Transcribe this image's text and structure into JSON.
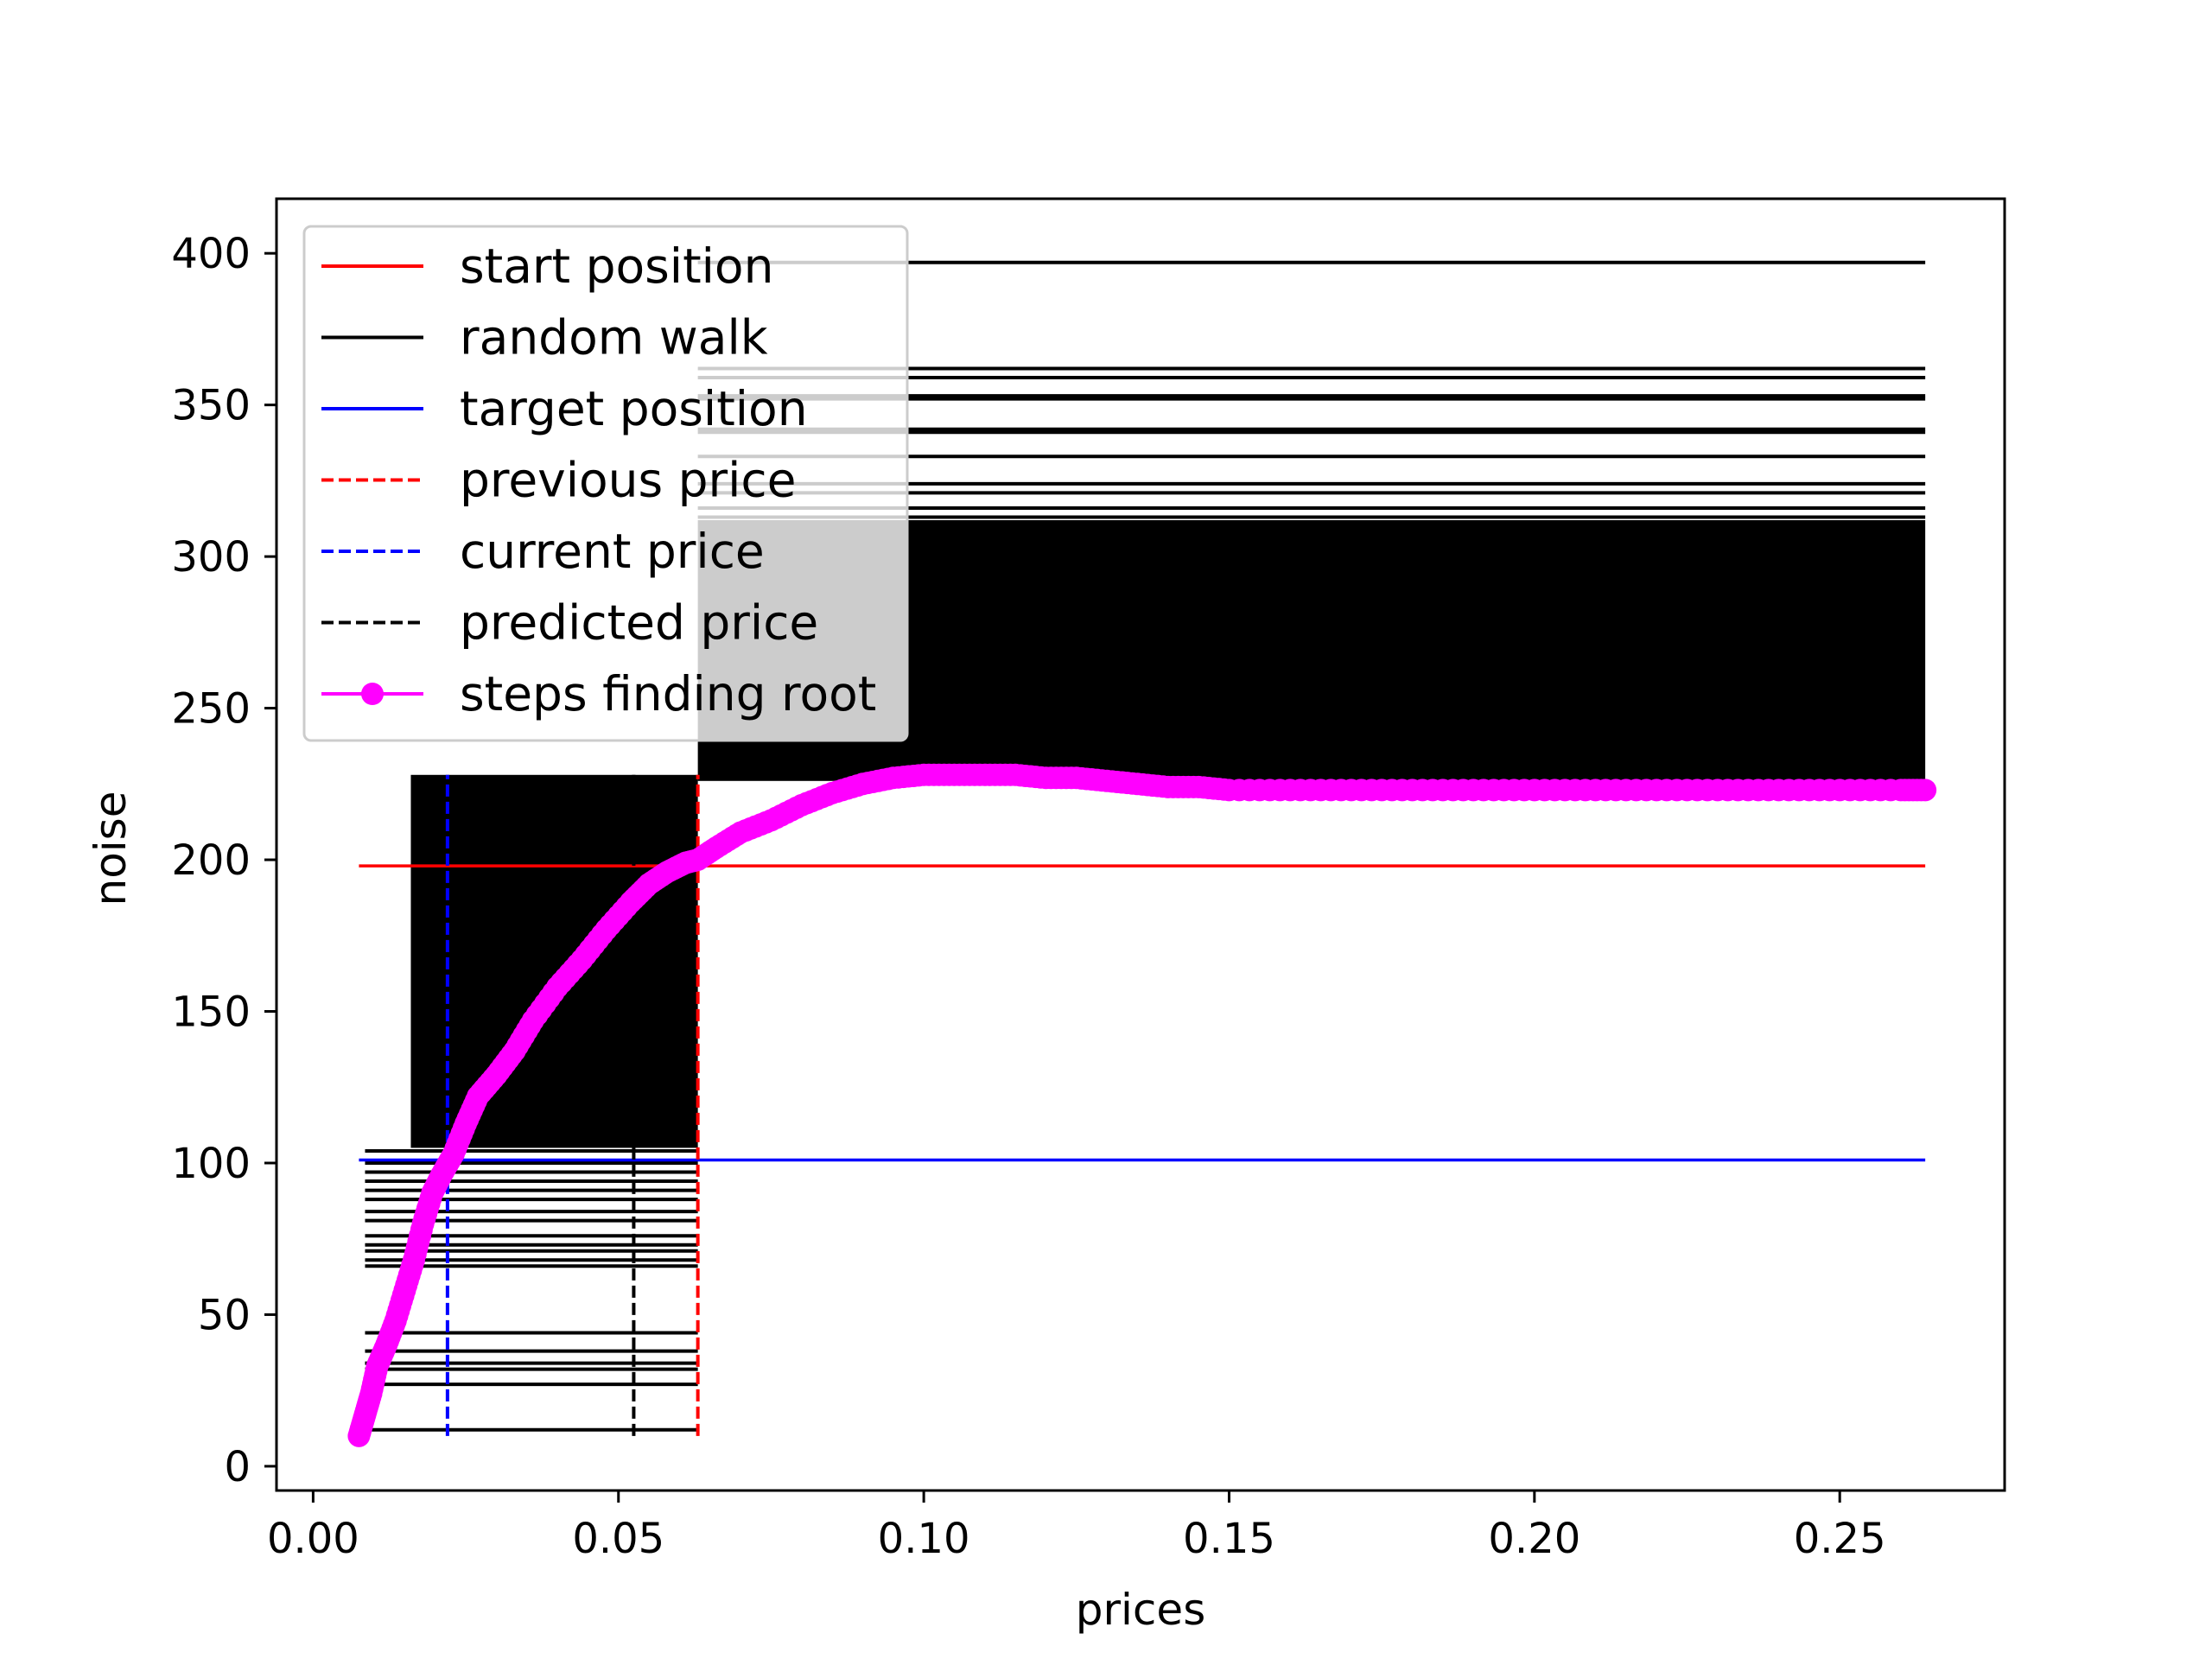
{
  "chart_data": {
    "type": "line",
    "xlabel": "prices",
    "ylabel": "noise",
    "xlim": [
      -0.006,
      0.277
    ],
    "ylim": [
      -8,
      418
    ],
    "xticks": [
      0.0,
      0.05,
      0.1,
      0.15,
      0.2,
      0.25
    ],
    "xtick_labels": [
      "0.00",
      "0.05",
      "0.10",
      "0.15",
      "0.20",
      "0.25"
    ],
    "yticks": [
      0,
      50,
      100,
      150,
      200,
      250,
      300,
      350,
      400
    ],
    "ytick_labels": [
      "0",
      "50",
      "100",
      "150",
      "200",
      "250",
      "300",
      "350",
      "400"
    ],
    "grid": false,
    "legend_position": "top-left",
    "legend": [
      {
        "label": "start position",
        "color": "#ff0000",
        "style": "solid",
        "marker": false
      },
      {
        "label": "random walk",
        "color": "#000000",
        "style": "solid",
        "marker": false
      },
      {
        "label": "target position",
        "color": "#0000ff",
        "style": "solid",
        "marker": false
      },
      {
        "label": "previous price",
        "color": "#ff0000",
        "style": "dashed",
        "marker": false
      },
      {
        "label": "current price",
        "color": "#0000ff",
        "style": "dashed",
        "marker": false
      },
      {
        "label": "predicted price",
        "color": "#000000",
        "style": "dashed",
        "marker": false
      },
      {
        "label": "steps finding root",
        "color": "#ff00ff",
        "style": "solid",
        "marker": true
      }
    ],
    "start_position": {
      "y": 198,
      "x_range": [
        0.0075,
        0.264
      ]
    },
    "target_position": {
      "y": 101,
      "x_range": [
        0.0075,
        0.264
      ]
    },
    "previous_price": {
      "x": 0.063,
      "y_range": [
        10,
        228
      ]
    },
    "current_price": {
      "x": 0.022,
      "y_range": [
        10,
        228
      ]
    },
    "predicted_price": {
      "x": 0.0525,
      "y_range": [
        10,
        228
      ]
    },
    "random_walk": {
      "left_segment_x": [
        0.0085,
        0.063
      ],
      "left_levels": [
        12,
        27,
        32,
        34,
        38,
        44,
        66,
        68,
        71,
        73,
        76,
        81,
        84,
        88,
        91,
        94,
        97,
        100,
        104
      ],
      "left_fill_range": [
        105,
        228
      ],
      "right_segment_x": [
        0.063,
        0.264
      ],
      "right_fill_range": [
        226,
        312
      ],
      "right_levels": [
        313,
        316,
        321,
        324,
        333,
        341,
        342,
        352,
        353,
        359,
        362,
        397
      ]
    },
    "steps_finding_root": {
      "x": [
        0.0075,
        0.0085,
        0.0095,
        0.0105,
        0.012,
        0.0135,
        0.015,
        0.0165,
        0.018,
        0.0195,
        0.021,
        0.023,
        0.025,
        0.027,
        0.03,
        0.033,
        0.036,
        0.04,
        0.044,
        0.048,
        0.052,
        0.055,
        0.058,
        0.061,
        0.063,
        0.066,
        0.07,
        0.075,
        0.08,
        0.085,
        0.09,
        0.095,
        0.1,
        0.105,
        0.11,
        0.115,
        0.12,
        0.125,
        0.13,
        0.135,
        0.14,
        0.145,
        0.15,
        0.16,
        0.17,
        0.18,
        0.19,
        0.2,
        0.21,
        0.22,
        0.23,
        0.24,
        0.25,
        0.26,
        0.264
      ],
      "y": [
        10,
        17,
        24,
        33,
        40,
        48,
        58,
        68,
        80,
        90,
        96,
        103,
        113,
        122,
        129,
        137,
        147,
        158,
        167,
        177,
        186,
        192,
        196,
        199,
        200,
        204,
        209,
        213,
        218,
        222,
        225,
        227,
        228,
        228,
        228,
        228,
        227,
        227,
        226,
        225,
        224,
        224,
        223,
        223,
        223,
        223,
        223,
        223,
        223,
        223,
        223,
        223,
        223,
        223,
        223
      ]
    },
    "colors": {
      "start": "#ff0000",
      "walk": "#000000",
      "target": "#0000ff",
      "steps": "#ff00ff"
    }
  }
}
